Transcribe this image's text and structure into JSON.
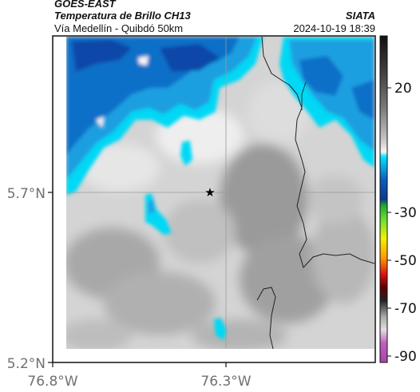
{
  "header": {
    "satellite": "GOES-EAST",
    "product": "Temperatura de Brillo CH13",
    "route": "Vía Medellín - Quibdó 50km",
    "agency": "SIATA",
    "datetime": "2024-10-19 18:39"
  },
  "map": {
    "lat_ticks": [
      "5.7°N",
      "5.2°N"
    ],
    "lon_ticks": [
      "76.8°W",
      "76.3°W"
    ],
    "marker_symbol": "★"
  },
  "colorbar": {
    "ticks": [
      "20",
      "-30",
      "-50",
      "-70",
      "-90"
    ],
    "colors": {
      "warm_top": "#1a1a1a",
      "gray_mid": "#9a9a9a",
      "white": "#ffffff",
      "cyan": "#00e5ff",
      "blue": "#0a5fc0",
      "green": "#22cc22",
      "yellow": "#f2f200",
      "red": "#e01010",
      "magenta": "#c040c0"
    }
  }
}
